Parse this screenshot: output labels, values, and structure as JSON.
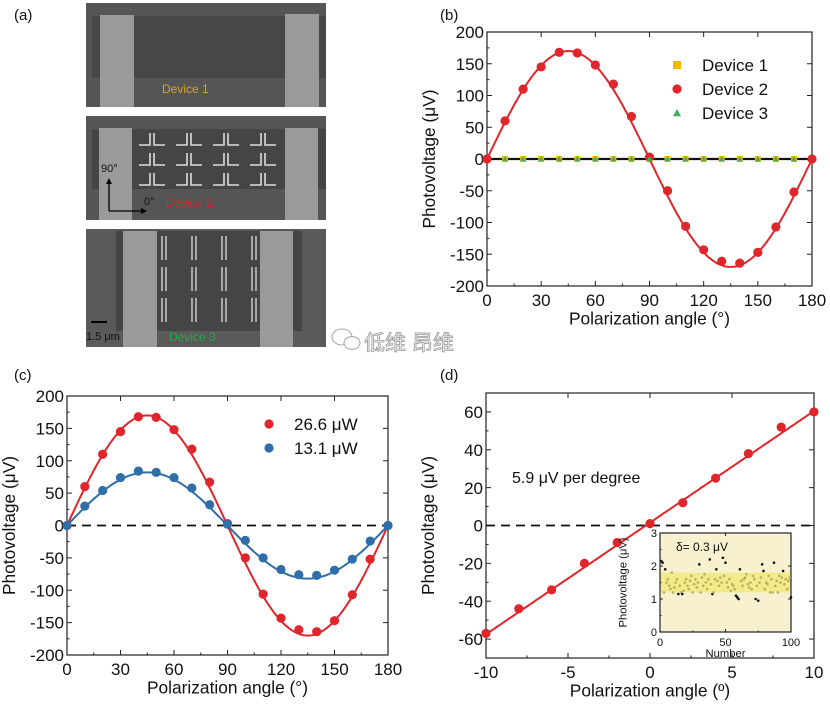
{
  "panel_labels": {
    "a": "(a)",
    "b": "(b)",
    "c": "(c)",
    "d": "(d)"
  },
  "panel_a": {
    "device1_label": "Device 1",
    "device2_label": "Device 2",
    "device3_label": "Device 3",
    "axis_90": "90°",
    "axis_0": "0°",
    "scale_bar": "1.5 μm",
    "colors": {
      "device1": "#d9a520",
      "device2": "#d6262a",
      "device3": "#2aa84a"
    }
  },
  "watermark": {
    "text": "低维 昂维",
    "icon": "wechat-icon"
  },
  "chart_data": [
    {
      "id": "b",
      "type": "scatter",
      "xlabel": "Polarization angle (°)",
      "ylabel": "Photovoltage (μV)",
      "xlim": [
        0,
        180
      ],
      "ylim": [
        -200,
        200
      ],
      "xticks": [
        0,
        30,
        60,
        90,
        120,
        150,
        180
      ],
      "yticks": [
        -200,
        -150,
        -100,
        -50,
        0,
        50,
        100,
        150,
        200
      ],
      "zero_line": "solid",
      "legend_position": "top-right",
      "series": [
        {
          "name": "Device 1",
          "marker": "square",
          "color": "#f5b800",
          "x": [
            10,
            20,
            30,
            40,
            50,
            60,
            70,
            80,
            90,
            100,
            110,
            120,
            130,
            140,
            150,
            160,
            170,
            180
          ],
          "y": [
            0,
            0,
            0,
            0,
            0,
            0,
            0,
            0,
            0,
            0,
            0,
            0,
            0,
            0,
            0,
            0,
            0,
            0
          ]
        },
        {
          "name": "Device 2",
          "marker": "circle",
          "color": "#e0262a",
          "fit": {
            "type": "sin2x",
            "amplitude": 170
          },
          "x": [
            0,
            10,
            20,
            30,
            40,
            50,
            60,
            70,
            80,
            90,
            100,
            110,
            120,
            130,
            140,
            150,
            160,
            170,
            180
          ],
          "y": [
            0,
            60,
            110,
            145,
            168,
            167,
            148,
            118,
            67,
            3,
            -50,
            -106,
            -143,
            -161,
            -164,
            -147,
            -107,
            -52,
            0
          ]
        },
        {
          "name": "Device 3",
          "marker": "triangle",
          "color": "#3cb35a",
          "x": [
            10,
            20,
            30,
            40,
            50,
            60,
            70,
            80,
            90,
            100,
            110,
            120,
            130,
            140,
            150,
            160,
            170
          ],
          "y": [
            0,
            0,
            0,
            0,
            0,
            0,
            0,
            0,
            0,
            0,
            0,
            0,
            0,
            0,
            0,
            0,
            0
          ]
        }
      ]
    },
    {
      "id": "c",
      "type": "scatter",
      "xlabel": "Polarization angle (°)",
      "ylabel": "Photovoltage (μV)",
      "xlim": [
        0,
        180
      ],
      "ylim": [
        -200,
        200
      ],
      "xticks": [
        0,
        30,
        60,
        90,
        120,
        150,
        180
      ],
      "yticks": [
        -200,
        -150,
        -100,
        -50,
        0,
        50,
        100,
        150,
        200
      ],
      "zero_line": "dashed",
      "legend_position": "top-right",
      "series": [
        {
          "name": "26.6 μW",
          "marker": "circle",
          "color": "#e0262a",
          "fit": {
            "type": "sin2x",
            "amplitude": 170
          },
          "x": [
            0,
            10,
            20,
            30,
            40,
            50,
            60,
            70,
            80,
            90,
            100,
            110,
            120,
            130,
            140,
            150,
            160,
            170,
            180
          ],
          "y": [
            0,
            60,
            110,
            145,
            168,
            167,
            148,
            118,
            67,
            3,
            -50,
            -106,
            -143,
            -161,
            -164,
            -147,
            -107,
            -52,
            0
          ]
        },
        {
          "name": "13.1 μW",
          "marker": "circle",
          "color": "#2f6ea8",
          "fit": {
            "type": "sin2x",
            "amplitude": 82
          },
          "x": [
            0,
            10,
            20,
            30,
            40,
            50,
            60,
            70,
            80,
            90,
            100,
            110,
            120,
            130,
            140,
            150,
            160,
            170,
            180
          ],
          "y": [
            0,
            30,
            54,
            74,
            84,
            82,
            74,
            58,
            32,
            2,
            -23,
            -50,
            -68,
            -76,
            -77,
            -69,
            -52,
            -24,
            0
          ]
        }
      ]
    },
    {
      "id": "d",
      "type": "scatter",
      "xlabel": "Polarization angle (º)",
      "ylabel": "Photovoltage (μV)",
      "xlim": [
        -10,
        10
      ],
      "ylim": [
        -70,
        70
      ],
      "xticks": [
        -10,
        -5,
        0,
        5,
        10
      ],
      "yticks": [
        -60,
        -40,
        -20,
        0,
        20,
        40,
        60
      ],
      "zero_line": "dashed",
      "annotation": "5.9 μV per degree",
      "series": [
        {
          "marker": "circle",
          "color": "#e0262a",
          "fit": {
            "type": "linear",
            "slope": 5.9,
            "intercept": 1.5
          },
          "x": [
            -10,
            -8,
            -6,
            -4,
            -2,
            0,
            2,
            4,
            6,
            8,
            10
          ],
          "y": [
            -57,
            -44,
            -34,
            -20,
            -9,
            1,
            12,
            25,
            38,
            52,
            60
          ]
        }
      ],
      "inset": {
        "type": "scatter",
        "xlabel": "Number",
        "ylabel": "Photovoltage (μV)",
        "xlim": [
          0,
          100
        ],
        "ylim": [
          0,
          3
        ],
        "xticks": [
          0,
          50,
          100
        ],
        "yticks": [
          0,
          1,
          2,
          3
        ],
        "annotation": "δ= 0.3 μV",
        "background": "#f8f1cf",
        "band": {
          "range": [
            1.2,
            1.8
          ],
          "color": "#f3ea8a"
        },
        "values": [
          2.15,
          2.1,
          1.2,
          1.9,
          1.5,
          1.6,
          1.4,
          1.3,
          1.8,
          1.2,
          1.35,
          1.5,
          1.6,
          1.15,
          1.4,
          1.2,
          1.15,
          1.25,
          1.5,
          1.6,
          1.4,
          1.3,
          1.55,
          1.7,
          1.2,
          1.45,
          1.6,
          1.35,
          1.5,
          2.05,
          1.2,
          1.65,
          1.4,
          1.75,
          1.5,
          1.3,
          1.6,
          2.2,
          1.45,
          1.15,
          1.2,
          1.6,
          1.9,
          1.55,
          1.4,
          1.65,
          1.5,
          2.25,
          1.7,
          2.1,
          1.5,
          1.35,
          1.6,
          1.25,
          1.45,
          1.4,
          1.3,
          1.1,
          1.05,
          1.0,
          1.9,
          1.55,
          1.4,
          1.6,
          1.65,
          1.75,
          1.45,
          1.35,
          1.5,
          1.3,
          1.7,
          1.6,
          1.0,
          1.4,
          0.95,
          1.5,
          1.65,
          2.05,
          1.85,
          1.3,
          1.5,
          1.45,
          1.7,
          1.2,
          1.6,
          1.2,
          2.1,
          1.4,
          1.55,
          1.2,
          1.7,
          1.5,
          1.65,
          1.85,
          1.45,
          1.6,
          1.3,
          1.55,
          1.65,
          1.05
        ]
      }
    }
  ]
}
